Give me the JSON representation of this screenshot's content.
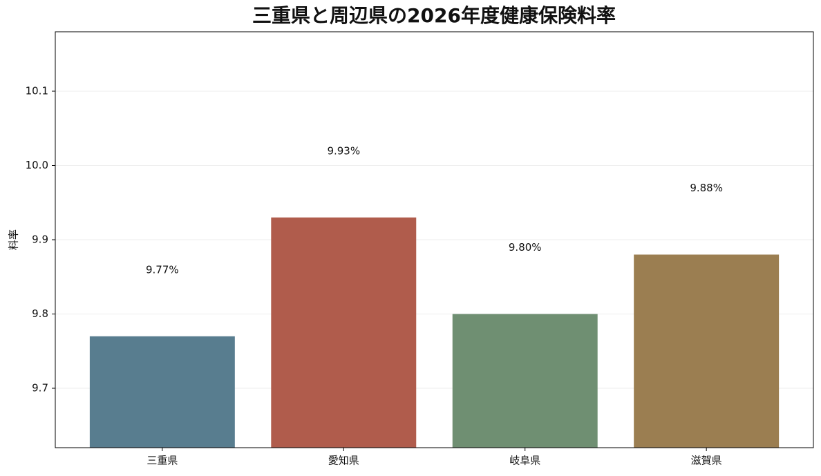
{
  "chart_data": {
    "type": "bar",
    "title": "三重県と周辺県の2026年度健康保険料率",
    "y_label": "料率",
    "categories": [
      "三重県",
      "愛知県",
      "岐阜県",
      "滋賀県"
    ],
    "values": [
      9.77,
      9.93,
      9.8,
      9.88
    ],
    "value_labels": [
      "9.77%",
      "9.93%",
      "9.80%",
      "9.88%"
    ],
    "colors": [
      "#587d8f",
      "#b05c4c",
      "#6f8f72",
      "#9b7e51"
    ],
    "ylim": [
      9.62,
      10.18
    ],
    "yticks": [
      9.7,
      9.8,
      9.9,
      {
        "value": 10.0,
        "label": "10.0"
      },
      10.1
    ],
    "grid": true
  }
}
